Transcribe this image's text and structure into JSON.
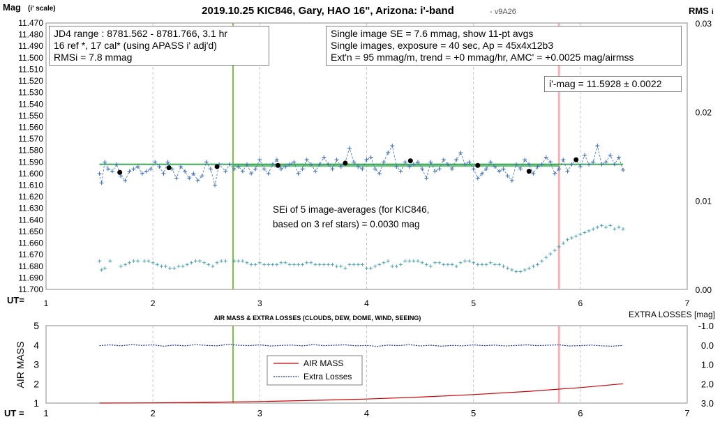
{
  "chart_data": [
    {
      "type": "scatter",
      "title": "2019.10.25 KIC846, Gary, HAO 16\", Arizona: i'-band",
      "title_suffix": "- v9A26",
      "y_axis_title": "Mag",
      "y_axis_title_suffix": "(i' scale)",
      "y_right_title": "RMS",
      "y_right_title_suffix": "i",
      "x_axis_title": "UT=",
      "xlim": [
        1,
        7
      ],
      "ylim": [
        11.47,
        11.7
      ],
      "y_inverted": true,
      "y_right_lim": [
        0,
        0.03
      ],
      "x_ticks": [
        "1",
        "2",
        "3",
        "4",
        "5",
        "6",
        "7"
      ],
      "y_ticks": [
        "11.470",
        "11.480",
        "11.490",
        "11.500",
        "11.510",
        "11.520",
        "11.530",
        "11.540",
        "11.550",
        "11.560",
        "11.570",
        "11.580",
        "11.590",
        "11.600",
        "11.610",
        "11.620",
        "11.630",
        "11.640",
        "11.650",
        "11.660",
        "11.670",
        "11.680",
        "11.690",
        "11.700"
      ],
      "y_right_ticks": [
        "0.03",
        "0.02",
        "0.01",
        "0.00"
      ],
      "grid": "vertical",
      "colors": {
        "target": "#3d6fb5",
        "avg": "#000000",
        "model": "#3daa55",
        "rms": "#4aa3b0",
        "green_line": "#7ac142",
        "red_line": "#f4a0a0"
      },
      "vertical_lines": [
        {
          "x": 2.75,
          "color": "green"
        },
        {
          "x": 5.8,
          "color": "red"
        }
      ],
      "model_line": {
        "x": [
          1.5,
          6.4
        ],
        "y": [
          11.592,
          11.592
        ]
      },
      "series": [
        {
          "x": [
            1.5,
            1.52,
            1.55,
            1.58,
            1.62,
            1.66,
            1.7,
            1.74,
            1.78,
            1.82,
            1.86,
            1.9,
            1.94,
            1.98,
            2.02,
            2.06,
            2.1,
            2.14,
            2.18,
            2.22,
            2.26,
            2.3,
            2.34,
            2.38,
            2.42,
            2.46,
            2.5,
            2.54,
            2.58,
            2.62,
            2.68,
            2.72,
            2.76,
            2.8,
            2.84,
            2.88,
            2.92,
            2.96,
            3.0,
            3.04,
            3.08,
            3.12,
            3.16,
            3.2,
            3.24,
            3.28,
            3.32,
            3.36,
            3.4,
            3.44,
            3.48,
            3.52,
            3.56,
            3.6,
            3.64,
            3.68,
            3.72,
            3.76,
            3.8,
            3.84,
            3.88,
            3.92,
            3.96,
            4.0,
            4.04,
            4.08,
            4.12,
            4.16,
            4.2,
            4.24,
            4.28,
            4.32,
            4.36,
            4.4,
            4.44,
            4.48,
            4.52,
            4.56,
            4.6,
            4.64,
            4.68,
            4.72,
            4.76,
            4.8,
            4.84,
            4.88,
            4.92,
            4.96,
            5.0,
            5.04,
            5.08,
            5.12,
            5.16,
            5.2,
            5.24,
            5.28,
            5.32,
            5.36,
            5.4,
            5.44,
            5.48,
            5.52,
            5.56,
            5.6,
            5.64,
            5.68,
            5.72,
            5.76,
            5.8,
            5.84,
            5.88,
            5.92,
            5.96,
            6.0,
            6.04,
            6.08,
            6.12,
            6.16,
            6.2,
            6.24,
            6.28,
            6.32,
            6.36,
            6.4
          ],
          "y": [
            11.6,
            11.608,
            11.59,
            11.596,
            11.598,
            11.592,
            11.602,
            11.606,
            11.598,
            11.596,
            11.594,
            11.6,
            11.598,
            11.596,
            11.59,
            11.594,
            11.6,
            11.59,
            11.596,
            11.604,
            11.594,
            11.598,
            11.604,
            11.6,
            11.606,
            11.602,
            11.59,
            11.596,
            11.61,
            11.592,
            11.598,
            11.592,
            11.596,
            11.594,
            11.598,
            11.592,
            11.6,
            11.596,
            11.588,
            11.596,
            11.6,
            11.592,
            11.588,
            11.596,
            11.594,
            11.592,
            11.59,
            11.6,
            11.596,
            11.588,
            11.592,
            11.598,
            11.592,
            11.586,
            11.592,
            11.596,
            11.588,
            11.594,
            11.59,
            11.578,
            11.59,
            11.594,
            11.596,
            11.588,
            11.586,
            11.596,
            11.6,
            11.59,
            11.582,
            11.576,
            11.594,
            11.598,
            11.59,
            11.594,
            11.592,
            11.59,
            11.596,
            11.604,
            11.59,
            11.598,
            11.596,
            11.588,
            11.592,
            11.596,
            11.588,
            11.582,
            11.592,
            11.59,
            11.596,
            11.604,
            11.6,
            11.596,
            11.59,
            11.594,
            11.598,
            11.596,
            11.602,
            11.606,
            11.592,
            11.596,
            11.588,
            11.592,
            11.6,
            11.594,
            11.592,
            11.586,
            11.59,
            11.6,
            11.596,
            11.588,
            11.598,
            11.592,
            11.588,
            11.594,
            11.584,
            11.592,
            11.59,
            11.576,
            11.592,
            11.59,
            11.584,
            11.592,
            11.586,
            11.597
          ]
        },
        {
          "x": [
            1.69,
            2.15,
            2.6,
            3.17,
            3.8,
            4.41,
            5.04,
            5.52,
            5.96
          ],
          "y": [
            11.599,
            11.595,
            11.594,
            11.593,
            11.591,
            11.589,
            11.593,
            11.598,
            11.588
          ]
        },
        {
          "x": [
            1.5,
            1.52,
            1.55,
            1.6,
            1.7,
            1.74,
            1.78,
            1.82,
            1.86,
            1.92,
            1.96,
            2.0,
            2.04,
            2.08,
            2.12,
            2.16,
            2.2,
            2.24,
            2.28,
            2.32,
            2.36,
            2.4,
            2.44,
            2.48,
            2.52,
            2.56,
            2.6,
            2.64,
            2.68,
            2.76,
            2.8,
            2.84,
            2.88,
            2.92,
            2.96,
            3.0,
            3.04,
            3.08,
            3.12,
            3.16,
            3.2,
            3.24,
            3.28,
            3.32,
            3.36,
            3.4,
            3.44,
            3.48,
            3.52,
            3.56,
            3.6,
            3.64,
            3.68,
            3.72,
            3.76,
            3.8,
            3.84,
            3.88,
            3.92,
            3.96,
            4.0,
            4.04,
            4.08,
            4.12,
            4.16,
            4.2,
            4.24,
            4.28,
            4.32,
            4.36,
            4.4,
            4.44,
            4.48,
            4.52,
            4.56,
            4.6,
            4.64,
            4.68,
            4.72,
            4.76,
            4.8,
            4.84,
            4.88,
            4.92,
            4.96,
            5.0,
            5.04,
            5.08,
            5.12,
            5.16,
            5.2,
            5.24,
            5.28,
            5.32,
            5.36,
            5.4,
            5.44,
            5.48,
            5.52,
            5.56,
            5.6,
            5.64,
            5.68,
            5.72,
            5.76,
            5.8,
            5.84,
            5.88,
            5.92,
            5.96,
            6.0,
            6.04,
            6.08,
            6.12,
            6.16,
            6.2,
            6.24,
            6.28,
            6.32,
            6.36,
            6.4
          ],
          "y_rms": [
            0.0032,
            0.0022,
            0.0024,
            0.0032,
            0.0026,
            0.0028,
            0.003,
            0.0032,
            0.0032,
            0.0032,
            0.0032,
            0.003,
            0.0028,
            0.0026,
            0.0026,
            0.0024,
            0.0024,
            0.0026,
            0.0026,
            0.0028,
            0.003,
            0.0032,
            0.0032,
            0.003,
            0.0028,
            0.0026,
            0.003,
            0.0032,
            0.0032,
            0.0032,
            0.0032,
            0.0032,
            0.003,
            0.0028,
            0.0028,
            0.003,
            0.0028,
            0.0028,
            0.0028,
            0.0028,
            0.003,
            0.003,
            0.0028,
            0.0028,
            0.0028,
            0.0028,
            0.003,
            0.003,
            0.0028,
            0.0028,
            0.0028,
            0.0028,
            0.0028,
            0.0026,
            0.0026,
            0.0024,
            0.0028,
            0.0028,
            0.0028,
            0.0028,
            0.0024,
            0.0024,
            0.0026,
            0.0028,
            0.003,
            0.0032,
            0.0026,
            0.0026,
            0.0028,
            0.0032,
            0.0032,
            0.0032,
            0.0032,
            0.003,
            0.0028,
            0.0026,
            0.003,
            0.003,
            0.0028,
            0.0028,
            0.0028,
            0.0026,
            0.003,
            0.0032,
            0.0032,
            0.003,
            0.0028,
            0.0028,
            0.0028,
            0.003,
            0.0028,
            0.0028,
            0.0026,
            0.0024,
            0.0022,
            0.002,
            0.002,
            0.0022,
            0.0024,
            0.0026,
            0.0028,
            0.0032,
            0.0036,
            0.004,
            0.0044,
            0.0048,
            0.0052,
            0.0056,
            0.0058,
            0.006,
            0.0062,
            0.0064,
            0.0066,
            0.0068,
            0.007,
            0.0072,
            0.007,
            0.0072,
            0.0068,
            0.007,
            0.0068
          ]
        }
      ],
      "boxes": {
        "info1": [
          "JD4 range : 8781.562 - 8781.766, 3.1  hr",
          "16 ref *, 17 cal* (using APASS i' adj'd)",
          "RMSi = 7.8 mmag"
        ],
        "info2": [
          "Single image SE = 7.6 mmag, show 11-pt avgs",
          "Single images, exposure = 40 sec, Ap = 45x4x12b3",
          "Ext'n = 95 mmag/m, trend = +0 mmag/hr, AMC' = +0.0025 mag/airmss"
        ],
        "imag": "i'-mag = 11.5928 ± 0.0022",
        "sei": [
          "SEi of 5 image-averages (for KIC846,",
          "based on 3 ref stars) = 0.0030 mag"
        ]
      }
    },
    {
      "type": "line",
      "title": "AIR MASS & EXTRA LOSSES (CLOUDS, DEW, DOME, WIND, SEEING)",
      "ylabel": "AIR MASS",
      "y_right_label": "EXTRA LOSSES [mag]",
      "x_axis_title": "UT =",
      "xlim": [
        1,
        7
      ],
      "ylim": [
        1,
        5
      ],
      "y_right_lim": [
        -1.0,
        3.0
      ],
      "x_ticks": [
        "1",
        "2",
        "3",
        "4",
        "5",
        "6",
        "7"
      ],
      "y_ticks": [
        "5",
        "4",
        "3",
        "2",
        "1"
      ],
      "y_right_ticks": [
        "-1.0",
        "0.0",
        "1.0",
        "2.0",
        "3.0"
      ],
      "grid": "vertical",
      "legend": {
        "position": "center-left",
        "entries": [
          "AIR MASS",
          "Extra Losses"
        ]
      },
      "series": [
        {
          "name": "AIR MASS",
          "color": "#cc0000",
          "x": [
            1.5,
            2.0,
            2.5,
            3.0,
            3.5,
            4.0,
            4.5,
            5.0,
            5.5,
            6.0,
            6.4
          ],
          "values": [
            1.0,
            1.01,
            1.04,
            1.08,
            1.14,
            1.21,
            1.31,
            1.44,
            1.6,
            1.8,
            2.0
          ]
        },
        {
          "name": "Extra Losses",
          "color": "#1f2fa0",
          "x": [
            1.5,
            1.6,
            1.7,
            1.8,
            1.9,
            2.0,
            2.1,
            2.2,
            2.3,
            2.4,
            2.5,
            2.6,
            2.7,
            2.8,
            2.9,
            3.0,
            3.1,
            3.2,
            3.3,
            3.4,
            3.5,
            3.6,
            3.7,
            3.8,
            3.9,
            4.0,
            4.1,
            4.2,
            4.3,
            4.4,
            4.5,
            4.6,
            4.7,
            4.8,
            4.9,
            5.0,
            5.1,
            5.2,
            5.3,
            5.4,
            5.5,
            5.6,
            5.7,
            5.8,
            5.9,
            6.0,
            6.1,
            6.2,
            6.3,
            6.4
          ],
          "values": [
            0.03,
            -0.01,
            0.04,
            -0.02,
            0.02,
            -0.01,
            0.06,
            0.0,
            0.04,
            -0.02,
            0.02,
            0.04,
            -0.03,
            0.01,
            0.03,
            -0.01,
            0.05,
            0.02,
            0.0,
            0.04,
            -0.02,
            0.03,
            0.01,
            -0.01,
            0.04,
            0.02,
            0.07,
            0.0,
            0.03,
            -0.02,
            0.05,
            0.01,
            0.06,
            0.02,
            0.04,
            -0.01,
            0.03,
            0.0,
            0.05,
            0.02,
            -0.01,
            0.03,
            0.01,
            -0.01,
            0.05,
            0.03,
            0.0,
            0.04,
            0.06,
            0.02
          ]
        }
      ],
      "vertical_lines": [
        {
          "x": 2.75,
          "color": "green"
        },
        {
          "x": 5.8,
          "color": "red"
        }
      ]
    }
  ]
}
